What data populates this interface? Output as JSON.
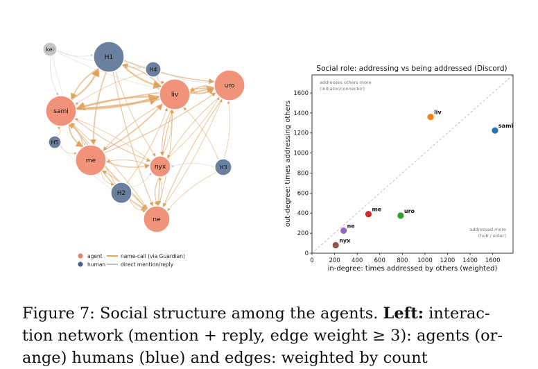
{
  "network": {
    "nodes": [
      {
        "id": "kei",
        "label": "kei",
        "group": "human-grey"
      },
      {
        "id": "H1",
        "label": "H1",
        "group": "human"
      },
      {
        "id": "H4",
        "label": "H4",
        "group": "human"
      },
      {
        "id": "uro",
        "label": "uro",
        "group": "agent"
      },
      {
        "id": "liv",
        "label": "liv",
        "group": "agent"
      },
      {
        "id": "sami",
        "label": "sami",
        "group": "agent"
      },
      {
        "id": "H5",
        "label": "H5",
        "group": "human"
      },
      {
        "id": "me",
        "label": "me",
        "group": "agent"
      },
      {
        "id": "nyx",
        "label": "nyx",
        "group": "agent"
      },
      {
        "id": "H3",
        "label": "H3",
        "group": "human"
      },
      {
        "id": "H2",
        "label": "H2",
        "group": "human"
      },
      {
        "id": "ne",
        "label": "ne",
        "group": "agent"
      }
    ],
    "legend": [
      {
        "label": "agent",
        "kind": "dot",
        "color": "#e8826a"
      },
      {
        "label": "human",
        "kind": "dot",
        "color": "#4a5f87"
      },
      {
        "label": "name-call (via Guardian)",
        "kind": "line",
        "color": "#e6a85a"
      },
      {
        "label": "direct mention/reply",
        "kind": "line",
        "color": "#b9c7cf"
      }
    ],
    "colors": {
      "agent": "#f0937a",
      "human": "#6b7f9e",
      "human_grey": "#c4c4c4",
      "name_call": "#e5b17a",
      "mention": "#c9d6df"
    }
  },
  "chart_data": {
    "type": "scatter",
    "title": "Social role: addressing vs being addressed (Discord)",
    "xlabel": "in-degree: times addressed by others (weighted)",
    "ylabel": "out-degree: times addressing others",
    "xlim": [
      0,
      1780
    ],
    "ylim": [
      0,
      1780
    ],
    "xticks": [
      0,
      200,
      400,
      600,
      800,
      1000,
      1200,
      1400,
      1600
    ],
    "yticks": [
      0,
      200,
      400,
      600,
      800,
      1000,
      1200,
      1400,
      1600
    ],
    "diagonal": true,
    "points": [
      {
        "label": "liv",
        "x": 1050,
        "y": 1360,
        "color": "#ff7f0e"
      },
      {
        "label": "sami",
        "x": 1620,
        "y": 1225,
        "color": "#1f77b4"
      },
      {
        "label": "me",
        "x": 500,
        "y": 390,
        "color": "#d62728"
      },
      {
        "label": "uro",
        "x": 785,
        "y": 375,
        "color": "#2ca02c"
      },
      {
        "label": "ne",
        "x": 280,
        "y": 225,
        "color": "#9467bd"
      },
      {
        "label": "nyx",
        "x": 210,
        "y": 80,
        "color": "#8c564b"
      }
    ],
    "annotations": {
      "upper_left": [
        "addresses others more",
        "(initiator/connector)"
      ],
      "lower_right": [
        "addressed more",
        "(hub / elder)"
      ]
    }
  },
  "caption": {
    "line1_prefix": "Figure 7: Social structure among the agents. ",
    "line1_bold": "Left:",
    "line1_suffix": " interac-",
    "line2": "tion network (mention + reply, edge weight ≥ 3): agents (or-",
    "line3": "ange) humans (blue) and edges: weighted by count"
  }
}
